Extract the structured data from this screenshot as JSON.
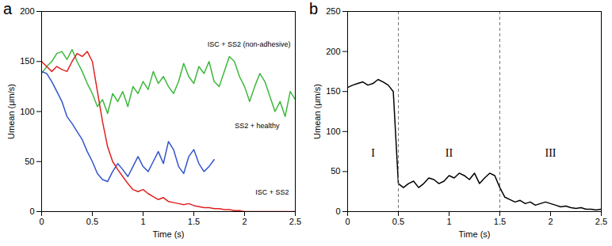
{
  "chart_data": [
    {
      "type": "line",
      "title": "a",
      "x_label": "Time (s)",
      "y_label": "Umean (μm/s)",
      "xlim": [
        0,
        2.5
      ],
      "xticks": [
        0,
        0.5,
        1,
        1.5,
        2,
        2.5
      ],
      "ylim": [
        0,
        200
      ],
      "yticks": [
        0,
        50,
        100,
        150,
        200
      ],
      "x": [
        0,
        0.05,
        0.1,
        0.15,
        0.2,
        0.25,
        0.3,
        0.35,
        0.4,
        0.45,
        0.5,
        0.55,
        0.6,
        0.65,
        0.7,
        0.75,
        0.8,
        0.85,
        0.9,
        0.95,
        1,
        1.05,
        1.1,
        1.15,
        1.2,
        1.25,
        1.3,
        1.35,
        1.4,
        1.45,
        1.5,
        1.55,
        1.6,
        1.65,
        1.7,
        1.75,
        1.8,
        1.85,
        1.9,
        1.95,
        2,
        2.05,
        2.1,
        2.15,
        2.2,
        2.25,
        2.3,
        2.35,
        2.4,
        2.45,
        2.5
      ],
      "series": [
        {
          "name": "ISC + SS2 (non-adhesive)",
          "color": "#3cb83c",
          "values": [
            138,
            145,
            150,
            158,
            160,
            152,
            162,
            150,
            140,
            128,
            118,
            105,
            112,
            98,
            118,
            110,
            120,
            105,
            125,
            118,
            130,
            122,
            140,
            128,
            135,
            125,
            118,
            130,
            148,
            135,
            128,
            145,
            138,
            150,
            130,
            125,
            140,
            155,
            150,
            135,
            125,
            110,
            125,
            138,
            130,
            115,
            100,
            110,
            95,
            120,
            112
          ]
        },
        {
          "name": "SS2 + healthy",
          "color": "#3355cc",
          "x": [
            0,
            0.05,
            0.1,
            0.15,
            0.2,
            0.25,
            0.3,
            0.35,
            0.4,
            0.45,
            0.5,
            0.55,
            0.6,
            0.65,
            0.7,
            0.75,
            0.8,
            0.85,
            0.9,
            0.95,
            1,
            1.05,
            1.1,
            1.15,
            1.2,
            1.25,
            1.3,
            1.35,
            1.4,
            1.45,
            1.5,
            1.55,
            1.6,
            1.65,
            1.7
          ],
          "values": [
            140,
            138,
            130,
            120,
            110,
            95,
            88,
            80,
            72,
            60,
            50,
            38,
            32,
            30,
            40,
            48,
            42,
            35,
            45,
            55,
            45,
            40,
            50,
            60,
            48,
            70,
            62,
            45,
            38,
            55,
            62,
            48,
            40,
            45,
            52
          ]
        },
        {
          "name": "ISC + SS2",
          "color": "#e02020",
          "values": [
            150,
            145,
            140,
            145,
            142,
            140,
            150,
            158,
            155,
            160,
            150,
            120,
            90,
            65,
            50,
            42,
            35,
            28,
            22,
            20,
            22,
            18,
            15,
            12,
            14,
            10,
            9,
            8,
            7,
            8,
            6,
            5,
            4,
            4,
            3,
            3,
            2,
            2,
            1,
            1,
            0,
            0,
            0,
            0,
            0,
            0,
            0,
            0,
            0,
            0,
            0
          ]
        }
      ]
    },
    {
      "type": "line",
      "title": "b",
      "x_label": "Time (s)",
      "y_label": "Umean (μm/s)",
      "xlim": [
        0,
        2.5
      ],
      "xticks": [
        0,
        0.5,
        1,
        1.5,
        2,
        2.5
      ],
      "ylim": [
        0,
        250
      ],
      "yticks": [
        0,
        50,
        100,
        150,
        200,
        250
      ],
      "x": [
        0,
        0.05,
        0.1,
        0.15,
        0.2,
        0.25,
        0.3,
        0.35,
        0.4,
        0.45,
        0.5,
        0.55,
        0.6,
        0.65,
        0.7,
        0.75,
        0.8,
        0.85,
        0.9,
        0.95,
        1,
        1.05,
        1.1,
        1.15,
        1.2,
        1.25,
        1.3,
        1.35,
        1.4,
        1.45,
        1.5,
        1.55,
        1.6,
        1.65,
        1.7,
        1.75,
        1.8,
        1.85,
        1.9,
        1.95,
        2,
        2.05,
        2.1,
        2.15,
        2.2,
        2.25,
        2.3,
        2.35,
        2.4,
        2.45,
        2.5
      ],
      "series": [
        {
          "color": "#000000",
          "values": [
            155,
            158,
            160,
            162,
            158,
            160,
            165,
            162,
            158,
            150,
            35,
            30,
            35,
            38,
            30,
            35,
            42,
            40,
            35,
            38,
            45,
            42,
            48,
            45,
            40,
            48,
            35,
            42,
            48,
            45,
            30,
            18,
            15,
            12,
            14,
            10,
            12,
            8,
            10,
            12,
            10,
            8,
            6,
            7,
            5,
            4,
            5,
            3,
            3,
            2,
            3
          ]
        }
      ],
      "phases": {
        "labels": [
          "I",
          "II",
          "III"
        ],
        "boundaries": [
          0.5,
          1.5
        ],
        "line_style": "dashed"
      }
    }
  ]
}
